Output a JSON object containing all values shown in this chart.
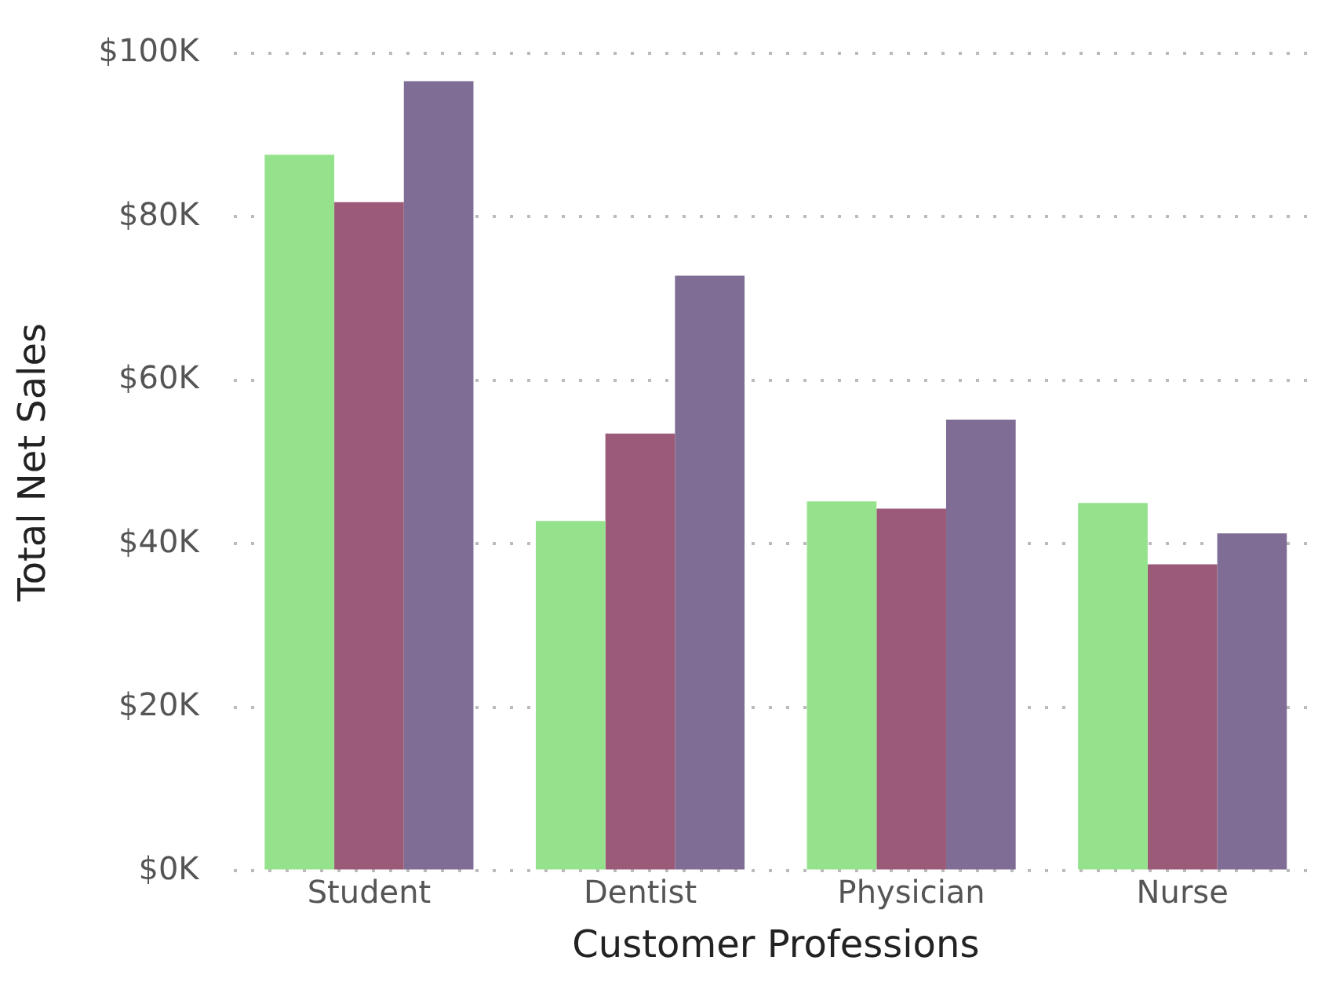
{
  "chart_data": {
    "type": "bar",
    "xlabel": "Customer Professions",
    "ylabel": "Total Net Sales",
    "categories": [
      "Student",
      "Dentist",
      "Physician",
      "Nurse"
    ],
    "series": [
      {
        "color": "#94e38c",
        "values": [
          87.6,
          42.8,
          45.2,
          45.0
        ]
      },
      {
        "color": "#9b5a78",
        "values": [
          81.8,
          53.5,
          44.3,
          37.5
        ]
      },
      {
        "color": "#7f6d96",
        "values": [
          96.6,
          72.8,
          55.2,
          41.3
        ]
      }
    ],
    "ylim": [
      0,
      100
    ],
    "yticks": [
      {
        "value": 0,
        "label": "$0K"
      },
      {
        "value": 20,
        "label": "$20K"
      },
      {
        "value": 40,
        "label": "$40K"
      },
      {
        "value": 60,
        "label": "$60K"
      },
      {
        "value": 80,
        "label": "$80K"
      },
      {
        "value": 100,
        "label": "$100K"
      }
    ],
    "grid": "y",
    "legend": false
  }
}
